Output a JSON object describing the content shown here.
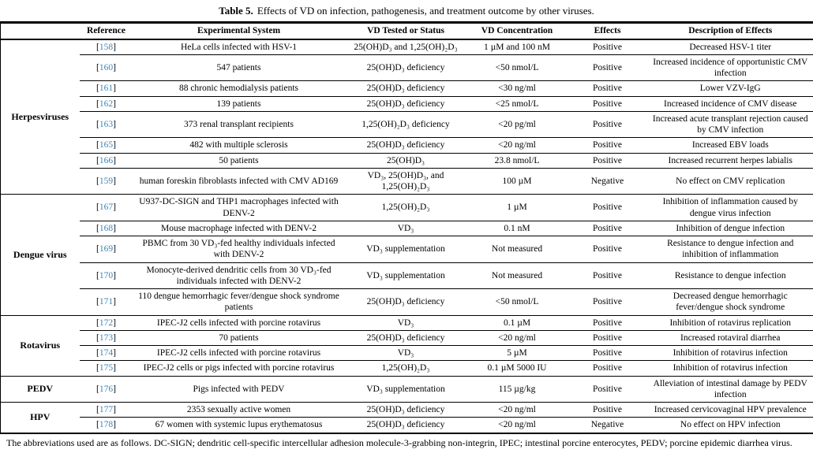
{
  "caption": {
    "label": "Table 5.",
    "text": "Effects of VD on infection, pathogenesis, and treatment outcome by other viruses."
  },
  "colors": {
    "reference_link": "#3e86b8",
    "border": "#000000",
    "text": "#000000",
    "background": "#ffffff"
  },
  "table": {
    "columns": [
      "Reference",
      "Experimental System",
      "VD Tested or Status",
      "VD Concentration",
      "Effects",
      "Description of Effects"
    ],
    "groups": [
      {
        "name": "Herpesviruses",
        "rows": [
          {
            "ref": "158",
            "system": "HeLa cells infected with HSV-1",
            "vd": "25(OH)D₃ and 1,25(OH)₂D₃",
            "conc": "1 µM and 100 nM",
            "effect": "Positive",
            "desc": "Decreased HSV-1 titer"
          },
          {
            "ref": "160",
            "system": "547 patients",
            "vd": "25(OH)D₃ deficiency",
            "conc": "<50 nmol/L",
            "effect": "Positive",
            "desc": "Increased incidence of opportunistic CMV infection"
          },
          {
            "ref": "161",
            "system": "88 chronic hemodialysis patients",
            "vd": "25(OH)D₃ deficiency",
            "conc": "<30 ng/ml",
            "effect": "Positive",
            "desc": "Lower VZV-IgG"
          },
          {
            "ref": "162",
            "system": "139 patients",
            "vd": "25(OH)D₃ deficiency",
            "conc": "<25 nmol/L",
            "effect": "Positive",
            "desc": "Increased incidence of CMV disease"
          },
          {
            "ref": "163",
            "system": "373 renal transplant recipients",
            "vd": "1,25(OH)₂D₃ deficiency",
            "conc": "<20 pg/ml",
            "effect": "Positive",
            "desc": "Increased acute transplant rejection caused by CMV infection"
          },
          {
            "ref": "165",
            "system": "482 with multiple sclerosis",
            "vd": "25(OH)D₃ deficiency",
            "conc": "<20 ng/ml",
            "effect": "Positive",
            "desc": "Increased EBV loads"
          },
          {
            "ref": "166",
            "system": "50 patients",
            "vd": "25(OH)D₃",
            "conc": "23.8 nmol/L",
            "effect": "Positive",
            "desc": "Increased recurrent herpes labialis"
          },
          {
            "ref": "159",
            "system": "human foreskin fibroblasts infected with CMV AD169",
            "vd": "VD₃, 25(OH)D₃, and 1,25(OH)₂D₃",
            "conc": "100 µM",
            "effect": "Negative",
            "desc": "No effect on CMV replication"
          }
        ]
      },
      {
        "name": "Dengue virus",
        "rows": [
          {
            "ref": "167",
            "system": "U937-DC-SIGN and THP1 macrophages infected with DENV-2",
            "vd": "1,25(OH)₂D₃",
            "conc": "1 µM",
            "effect": "Positive",
            "desc": "Inhibition of inflammation caused by dengue virus infection"
          },
          {
            "ref": "168",
            "system": "Mouse macrophage infected with DENV-2",
            "vd": "VD₃",
            "conc": "0.1 nM",
            "effect": "Positive",
            "desc": "Inhibition of dengue infection"
          },
          {
            "ref": "169",
            "system": "PBMC from 30 VD₃-fed healthy individuals infected with DENV-2",
            "vd": "VD₃ supplementation",
            "conc": "Not measured",
            "effect": "Positive",
            "desc": "Resistance to dengue infection and inhibition of inflammation"
          },
          {
            "ref": "170",
            "system": "Monocyte-derived dendritic cells from 30 VD₃-fed individuals infected with DENV-2",
            "vd": "VD₃ supplementation",
            "conc": "Not measured",
            "effect": "Positive",
            "desc": "Resistance to dengue infection"
          },
          {
            "ref": "171",
            "system": "110 dengue hemorrhagic fever/dengue shock syndrome patients",
            "vd": "25(OH)D₃ deficiency",
            "conc": "<50 nmol/L",
            "effect": "Positive",
            "desc": "Decreased dengue hemorrhagic fever/dengue shock syndrome"
          }
        ]
      },
      {
        "name": "Rotavirus",
        "rows": [
          {
            "ref": "172",
            "system": "IPEC-J2 cells infected with porcine rotavirus",
            "vd": "VD₃",
            "conc": "0.1 µM",
            "effect": "Positive",
            "desc": "Inhibition of rotavirus replication"
          },
          {
            "ref": "173",
            "system": "70 patients",
            "vd": "25(OH)D₃ deficiency",
            "conc": "<20 ng/ml",
            "effect": "Positive",
            "desc": "Increased rotaviral diarrhea"
          },
          {
            "ref": "174",
            "system": "IPEC-J2 cells infected with porcine rotavirus",
            "vd": "VD₃",
            "conc": "5 µM",
            "effect": "Positive",
            "desc": "Inhibition of rotavirus infection"
          },
          {
            "ref": "175",
            "system": "IPEC-J2 cells or pigs infected with porcine rotavirus",
            "vd": "1,25(OH)₂D₃",
            "conc": "0.1 µM 5000 IU",
            "effect": "Positive",
            "desc": "Inhibition of rotavirus infection"
          }
        ]
      },
      {
        "name": "PEDV",
        "rows": [
          {
            "ref": "176",
            "system": "Pigs infected with PEDV",
            "vd": "VD₃ supplementation",
            "conc": "115 µg/kg",
            "effect": "Positive",
            "desc": "Alleviation of intestinal damage by PEDV infection"
          }
        ]
      },
      {
        "name": "HPV",
        "rows": [
          {
            "ref": "177",
            "system": "2353 sexually active women",
            "vd": "25(OH)D₃ deficiency",
            "conc": "<20 ng/ml",
            "effect": "Positive",
            "desc": "Increased cervicovaginal HPV prevalence"
          },
          {
            "ref": "178",
            "system": "67 women with systemic lupus erythematosus",
            "vd": "25(OH)D₃ deficiency",
            "conc": "<20 ng/ml",
            "effect": "Negative",
            "desc": "No effect on HPV infection"
          }
        ]
      }
    ]
  },
  "footnote": "The abbreviations used are as follows. DC-SIGN; dendritic cell-specific intercellular adhesion molecule-3-grabbing non-integrin, IPEC; intestinal porcine enterocytes, PEDV; porcine epidemic diarrhea virus."
}
